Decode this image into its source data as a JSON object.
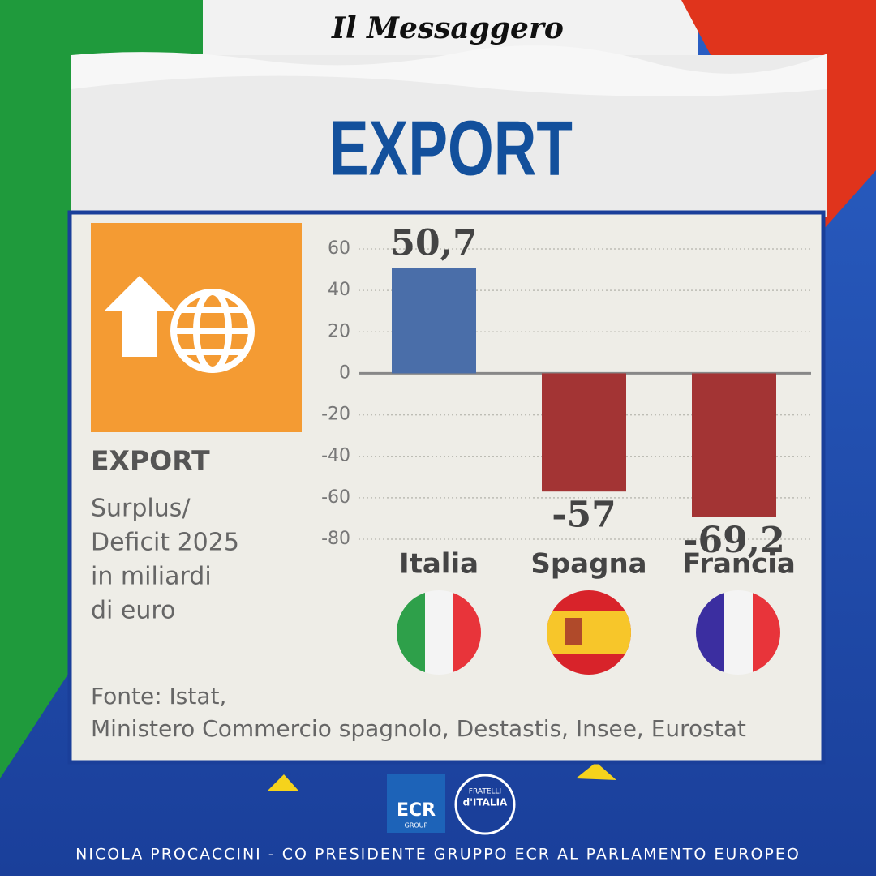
{
  "header": "Il Messaggero",
  "title": "EXPORT",
  "chart_data": {
    "type": "bar",
    "panel_title": "EXPORT",
    "subtitle_lines": [
      "Surplus/",
      "Deficit 2025",
      "in miliardi",
      "di euro"
    ],
    "categories": [
      "Italia",
      "Spagna",
      "Francia"
    ],
    "values": [
      50.7,
      -57,
      -69.2
    ],
    "value_labels": [
      "50,7",
      "-57",
      "-69,2"
    ],
    "colors": [
      "#4a6ea9",
      "#a33434",
      "#a33434"
    ],
    "ylim": [
      -80,
      60
    ],
    "yticks": [
      60,
      40,
      20,
      0,
      -20,
      -40,
      -60,
      -80
    ],
    "grid": true,
    "source_lines": [
      "Fonte: Istat,",
      "Ministero Commercio spagnolo, Destastis, Insee, Eurostat"
    ]
  },
  "logos": {
    "ecr": "ECR",
    "ecr_sub": "GROUP",
    "fdi_top": "FRATELLI",
    "fdi_main": "d'ITALIA"
  },
  "footer": "NICOLA PROCACCINI - CO PRESIDENTE GRUPPO ECR AL PARLAMENTO EUROPEO"
}
